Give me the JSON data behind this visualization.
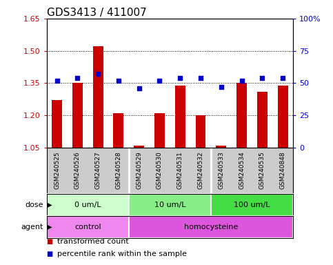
{
  "title": "GDS3413 / 411007",
  "samples": [
    "GSM240525",
    "GSM240526",
    "GSM240527",
    "GSM240528",
    "GSM240529",
    "GSM240530",
    "GSM240531",
    "GSM240532",
    "GSM240533",
    "GSM240534",
    "GSM240535",
    "GSM240848"
  ],
  "red_values": [
    1.27,
    1.35,
    1.52,
    1.21,
    1.06,
    1.21,
    1.34,
    1.2,
    1.06,
    1.35,
    1.31,
    1.34
  ],
  "blue_values": [
    52,
    54,
    57,
    52,
    46,
    52,
    54,
    54,
    47,
    52,
    54,
    54
  ],
  "ylim_left": [
    1.05,
    1.65
  ],
  "ylim_right": [
    0,
    100
  ],
  "yticks_left": [
    1.05,
    1.2,
    1.35,
    1.5,
    1.65
  ],
  "yticks_right": [
    0,
    25,
    50,
    75,
    100
  ],
  "ytick_labels_left": [
    "1.05",
    "1.20",
    "1.35",
    "1.50",
    "1.65"
  ],
  "ytick_labels_right": [
    "0",
    "25",
    "50",
    "75",
    "100%"
  ],
  "hlines": [
    1.2,
    1.35,
    1.5
  ],
  "dose_groups": [
    {
      "label": "0 um/L",
      "start": 0,
      "end": 4
    },
    {
      "label": "10 um/L",
      "start": 4,
      "end": 8
    },
    {
      "label": "100 um/L",
      "start": 8,
      "end": 12
    }
  ],
  "dose_colors": [
    "#ccffcc",
    "#88ee88",
    "#44dd44"
  ],
  "agent_groups": [
    {
      "label": "control",
      "start": 0,
      "end": 4
    },
    {
      "label": "homocysteine",
      "start": 4,
      "end": 12
    }
  ],
  "agent_colors": [
    "#ee88ee",
    "#dd55dd"
  ],
  "legend_red": "transformed count",
  "legend_blue": "percentile rank within the sample",
  "bar_color": "#cc0000",
  "dot_color": "#0000cc",
  "bar_width": 0.5,
  "sample_bg": "#cccccc",
  "title_fontsize": 11,
  "tick_fontsize": 8,
  "label_fontsize": 8,
  "row_fontsize": 8,
  "legend_fontsize": 8
}
